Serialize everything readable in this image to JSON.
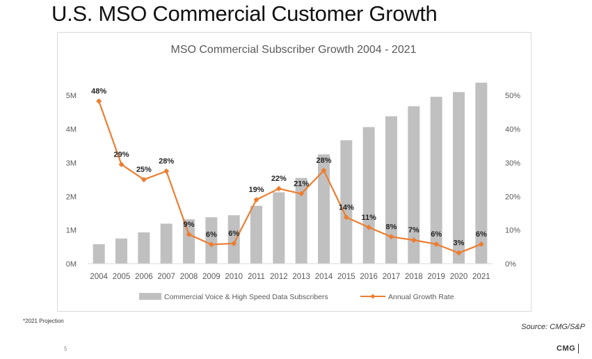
{
  "slide": {
    "title": "U.S. MSO Commercial Customer Growth",
    "footnote": "*2021 Projection",
    "source": "Source: CMG/S&P",
    "page_number": "5",
    "logo_text": "CMG"
  },
  "colors": {
    "bar": "#c0c0c0",
    "line": "#ed7d31",
    "axis_text": "#595959",
    "grid": "#d9d9d9",
    "title": "#595959",
    "data_label": "#222222"
  },
  "chart_data": {
    "type": "bar",
    "title": "MSO Commercial Subscriber Growth 2004 - 2021",
    "categories": [
      "2004",
      "2005",
      "2006",
      "2007",
      "2008",
      "2009",
      "2010",
      "2011",
      "2012",
      "2013",
      "2014",
      "2015",
      "2016",
      "2017",
      "2018",
      "2019",
      "2020",
      "2021"
    ],
    "y_left": {
      "ylim": [
        0,
        5.5
      ],
      "ticks": [
        0,
        1,
        2,
        3,
        4,
        5
      ],
      "tick_labels": [
        "0M",
        "1M",
        "2M",
        "3M",
        "4M",
        "5M"
      ],
      "unit": "M"
    },
    "y_right": {
      "ylim": [
        0,
        55
      ],
      "ticks": [
        0,
        10,
        20,
        30,
        40,
        50
      ],
      "tick_labels": [
        "0%",
        "10%",
        "20%",
        "30%",
        "40%",
        "50%"
      ],
      "unit": "%"
    },
    "grid": false,
    "legend_position": "bottom",
    "series": [
      {
        "name": "Commercial Voice & High Speed Data Subscribers",
        "type": "bar",
        "axis": "left",
        "values": [
          0.58,
          0.75,
          0.93,
          1.19,
          1.32,
          1.38,
          1.44,
          1.72,
          2.12,
          2.55,
          3.25,
          3.67,
          4.06,
          4.38,
          4.68,
          4.96,
          5.1,
          5.38
        ]
      },
      {
        "name": "Annual Growth Rate",
        "type": "line",
        "axis": "right",
        "values": [
          48,
          29,
          25,
          28,
          9,
          6,
          6,
          19,
          22,
          21,
          28,
          14,
          11,
          8,
          7,
          6,
          3,
          6
        ],
        "positions": [
          48.3,
          29.5,
          25,
          27.5,
          8.7,
          5.7,
          6,
          19,
          22.3,
          20.8,
          27.7,
          13.8,
          10.8,
          8,
          7,
          5.8,
          3.2,
          5.8
        ],
        "labels": [
          "48%",
          "29%",
          "25%",
          "28%",
          "9%",
          "6%",
          "6%",
          "19%",
          "22%",
          "21%",
          "28%",
          "14%",
          "11%",
          "8%",
          "7%",
          "6%",
          "3%",
          "6%"
        ]
      }
    ]
  }
}
